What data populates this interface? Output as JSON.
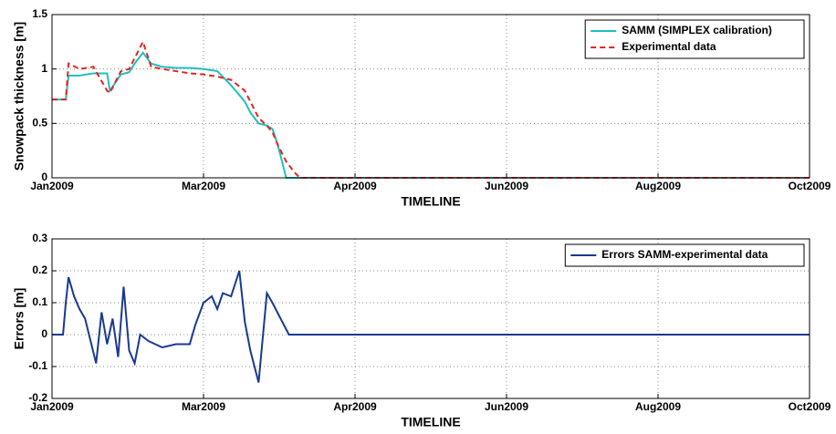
{
  "chart_data": [
    {
      "type": "line",
      "xlabel": "TIMELINE",
      "ylabel": "Snowpack thickness [m]",
      "x": [
        0,
        5,
        6,
        10,
        15,
        20,
        21,
        25,
        28,
        30,
        33,
        36,
        40,
        45,
        50,
        55,
        60,
        65,
        70,
        72,
        75,
        78,
        80,
        82,
        84,
        85,
        88,
        90,
        92,
        95,
        275
      ],
      "series": [
        {
          "name": "SAMM (SIMPLEX calibration)",
          "color": "#1fbfbf",
          "dash": "solid",
          "values": [
            0.72,
            0.72,
            0.94,
            0.94,
            0.96,
            0.96,
            0.8,
            0.95,
            0.97,
            1.05,
            1.15,
            1.05,
            1.02,
            1.01,
            1.01,
            1.0,
            0.98,
            0.85,
            0.7,
            0.6,
            0.5,
            0.48,
            0.45,
            0.3,
            0.1,
            0,
            0,
            0,
            0,
            0,
            0
          ]
        },
        {
          "name": "Experimental data",
          "color": "#e8231f",
          "dash": "dashed",
          "values": [
            0.72,
            0.72,
            1.05,
            1.0,
            1.02,
            0.8,
            0.78,
            0.98,
            1.0,
            1.1,
            1.25,
            1.02,
            1.0,
            0.98,
            0.96,
            0.95,
            0.93,
            0.9,
            0.8,
            0.7,
            0.55,
            0.48,
            0.42,
            0.3,
            0.2,
            0.15,
            0.05,
            0,
            0,
            0,
            0
          ]
        }
      ],
      "xlim": [
        0,
        275
      ],
      "xticks": [
        {
          "value": 0,
          "label": "Jan2009"
        },
        {
          "value": 55,
          "label": "Mar2009"
        },
        {
          "value": 110,
          "label": "Apr2009"
        },
        {
          "value": 165,
          "label": "Jun2009"
        },
        {
          "value": 220,
          "label": "Aug2009"
        },
        {
          "value": 275,
          "label": "Oct2009"
        }
      ],
      "ylim": [
        0,
        1.5
      ],
      "yticks": [
        0,
        0.5,
        1,
        1.5
      ],
      "grid": true,
      "legend": "upper right"
    },
    {
      "type": "line",
      "xlabel": "TIMELINE",
      "ylabel": "Errors [m]",
      "x": [
        0,
        4,
        5,
        6,
        8,
        10,
        12,
        14,
        16,
        18,
        20,
        22,
        24,
        26,
        28,
        30,
        32,
        35,
        40,
        45,
        50,
        52,
        55,
        58,
        60,
        62,
        65,
        68,
        70,
        72,
        75,
        78,
        80,
        83,
        86,
        90,
        92,
        275
      ],
      "series": [
        {
          "name": "Errors SAMM-experimental data",
          "color": "#1a3a8f",
          "dash": "solid",
          "values": [
            0,
            0,
            0.1,
            0.18,
            0.12,
            0.08,
            0.05,
            -0.02,
            -0.09,
            0.07,
            -0.03,
            0.05,
            -0.07,
            0.15,
            -0.05,
            -0.09,
            0.0,
            -0.02,
            -0.04,
            -0.03,
            -0.03,
            0.03,
            0.1,
            0.12,
            0.08,
            0.13,
            0.12,
            0.2,
            0.04,
            -0.05,
            -0.15,
            0.13,
            0.1,
            0.05,
            0,
            0,
            0,
            0
          ]
        }
      ],
      "xlim": [
        0,
        275
      ],
      "xticks": [
        {
          "value": 0,
          "label": "Jan2009"
        },
        {
          "value": 55,
          "label": "Mar2009"
        },
        {
          "value": 110,
          "label": "Apr2009"
        },
        {
          "value": 165,
          "label": "Jun2009"
        },
        {
          "value": 220,
          "label": "Aug2009"
        },
        {
          "value": 275,
          "label": "Oct2009"
        }
      ],
      "ylim": [
        -0.2,
        0.3
      ],
      "yticks": [
        -0.2,
        -0.1,
        0,
        0.1,
        0.2,
        0.3
      ],
      "grid": true,
      "legend": "upper right"
    }
  ]
}
